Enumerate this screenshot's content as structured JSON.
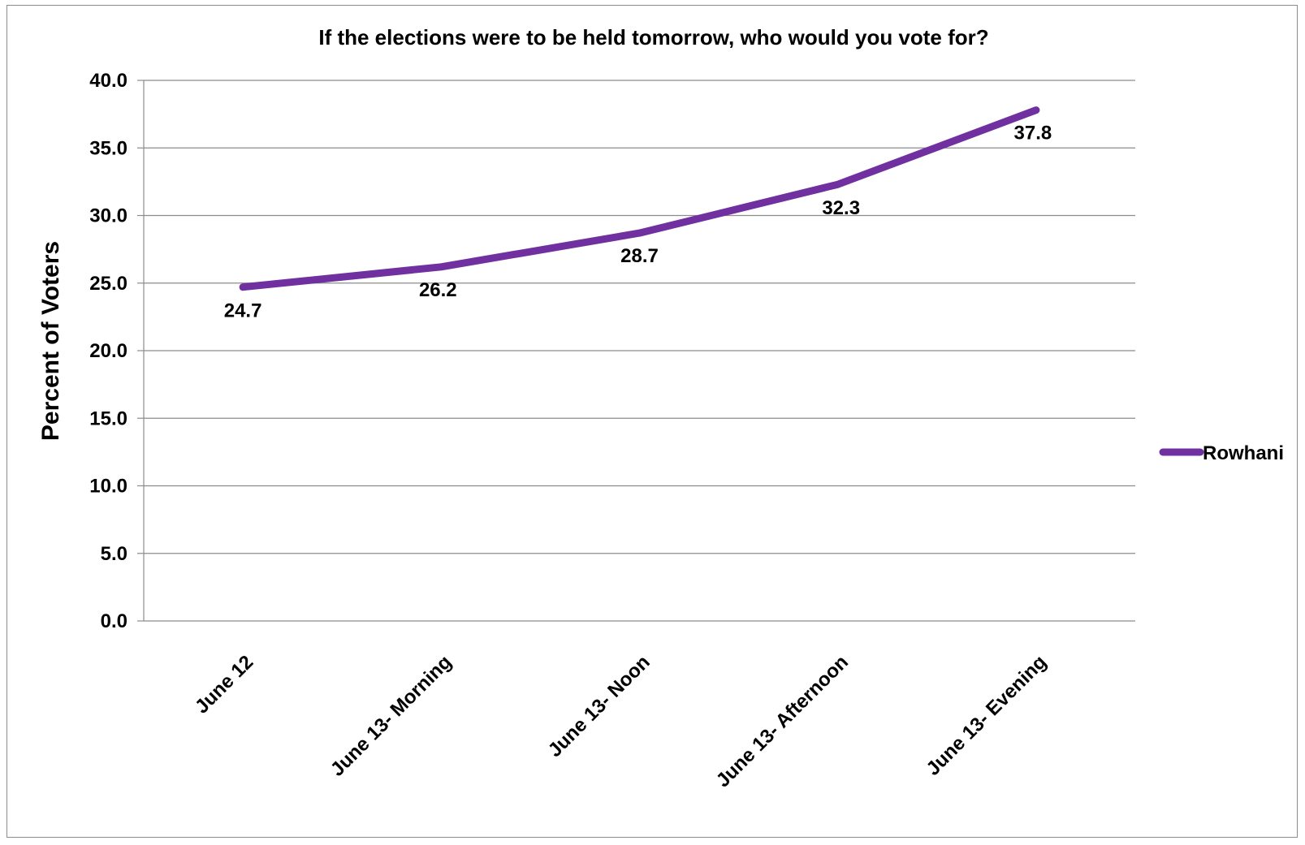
{
  "chart_data": {
    "type": "line",
    "title": "If the elections were to be held tomorrow, who would you vote for?",
    "xlabel": "",
    "ylabel": "Percent of Voters",
    "ylim": [
      0,
      40
    ],
    "y_ticks": [
      "0.0",
      "5.0",
      "10.0",
      "15.0",
      "20.0",
      "25.0",
      "30.0",
      "35.0",
      "40.0"
    ],
    "categories": [
      "June 12",
      "June 13- Morning",
      "June 13- Noon",
      "June 13- Afternoon",
      "June 13- Evening"
    ],
    "series": [
      {
        "name": "Rowhani",
        "values": [
          24.7,
          26.2,
          28.7,
          32.3,
          37.8
        ],
        "labels": [
          "24.7",
          "26.2",
          "28.7",
          "32.3",
          "37.8"
        ],
        "color": "#7030a0"
      }
    ],
    "grid": true,
    "legend": "right"
  }
}
